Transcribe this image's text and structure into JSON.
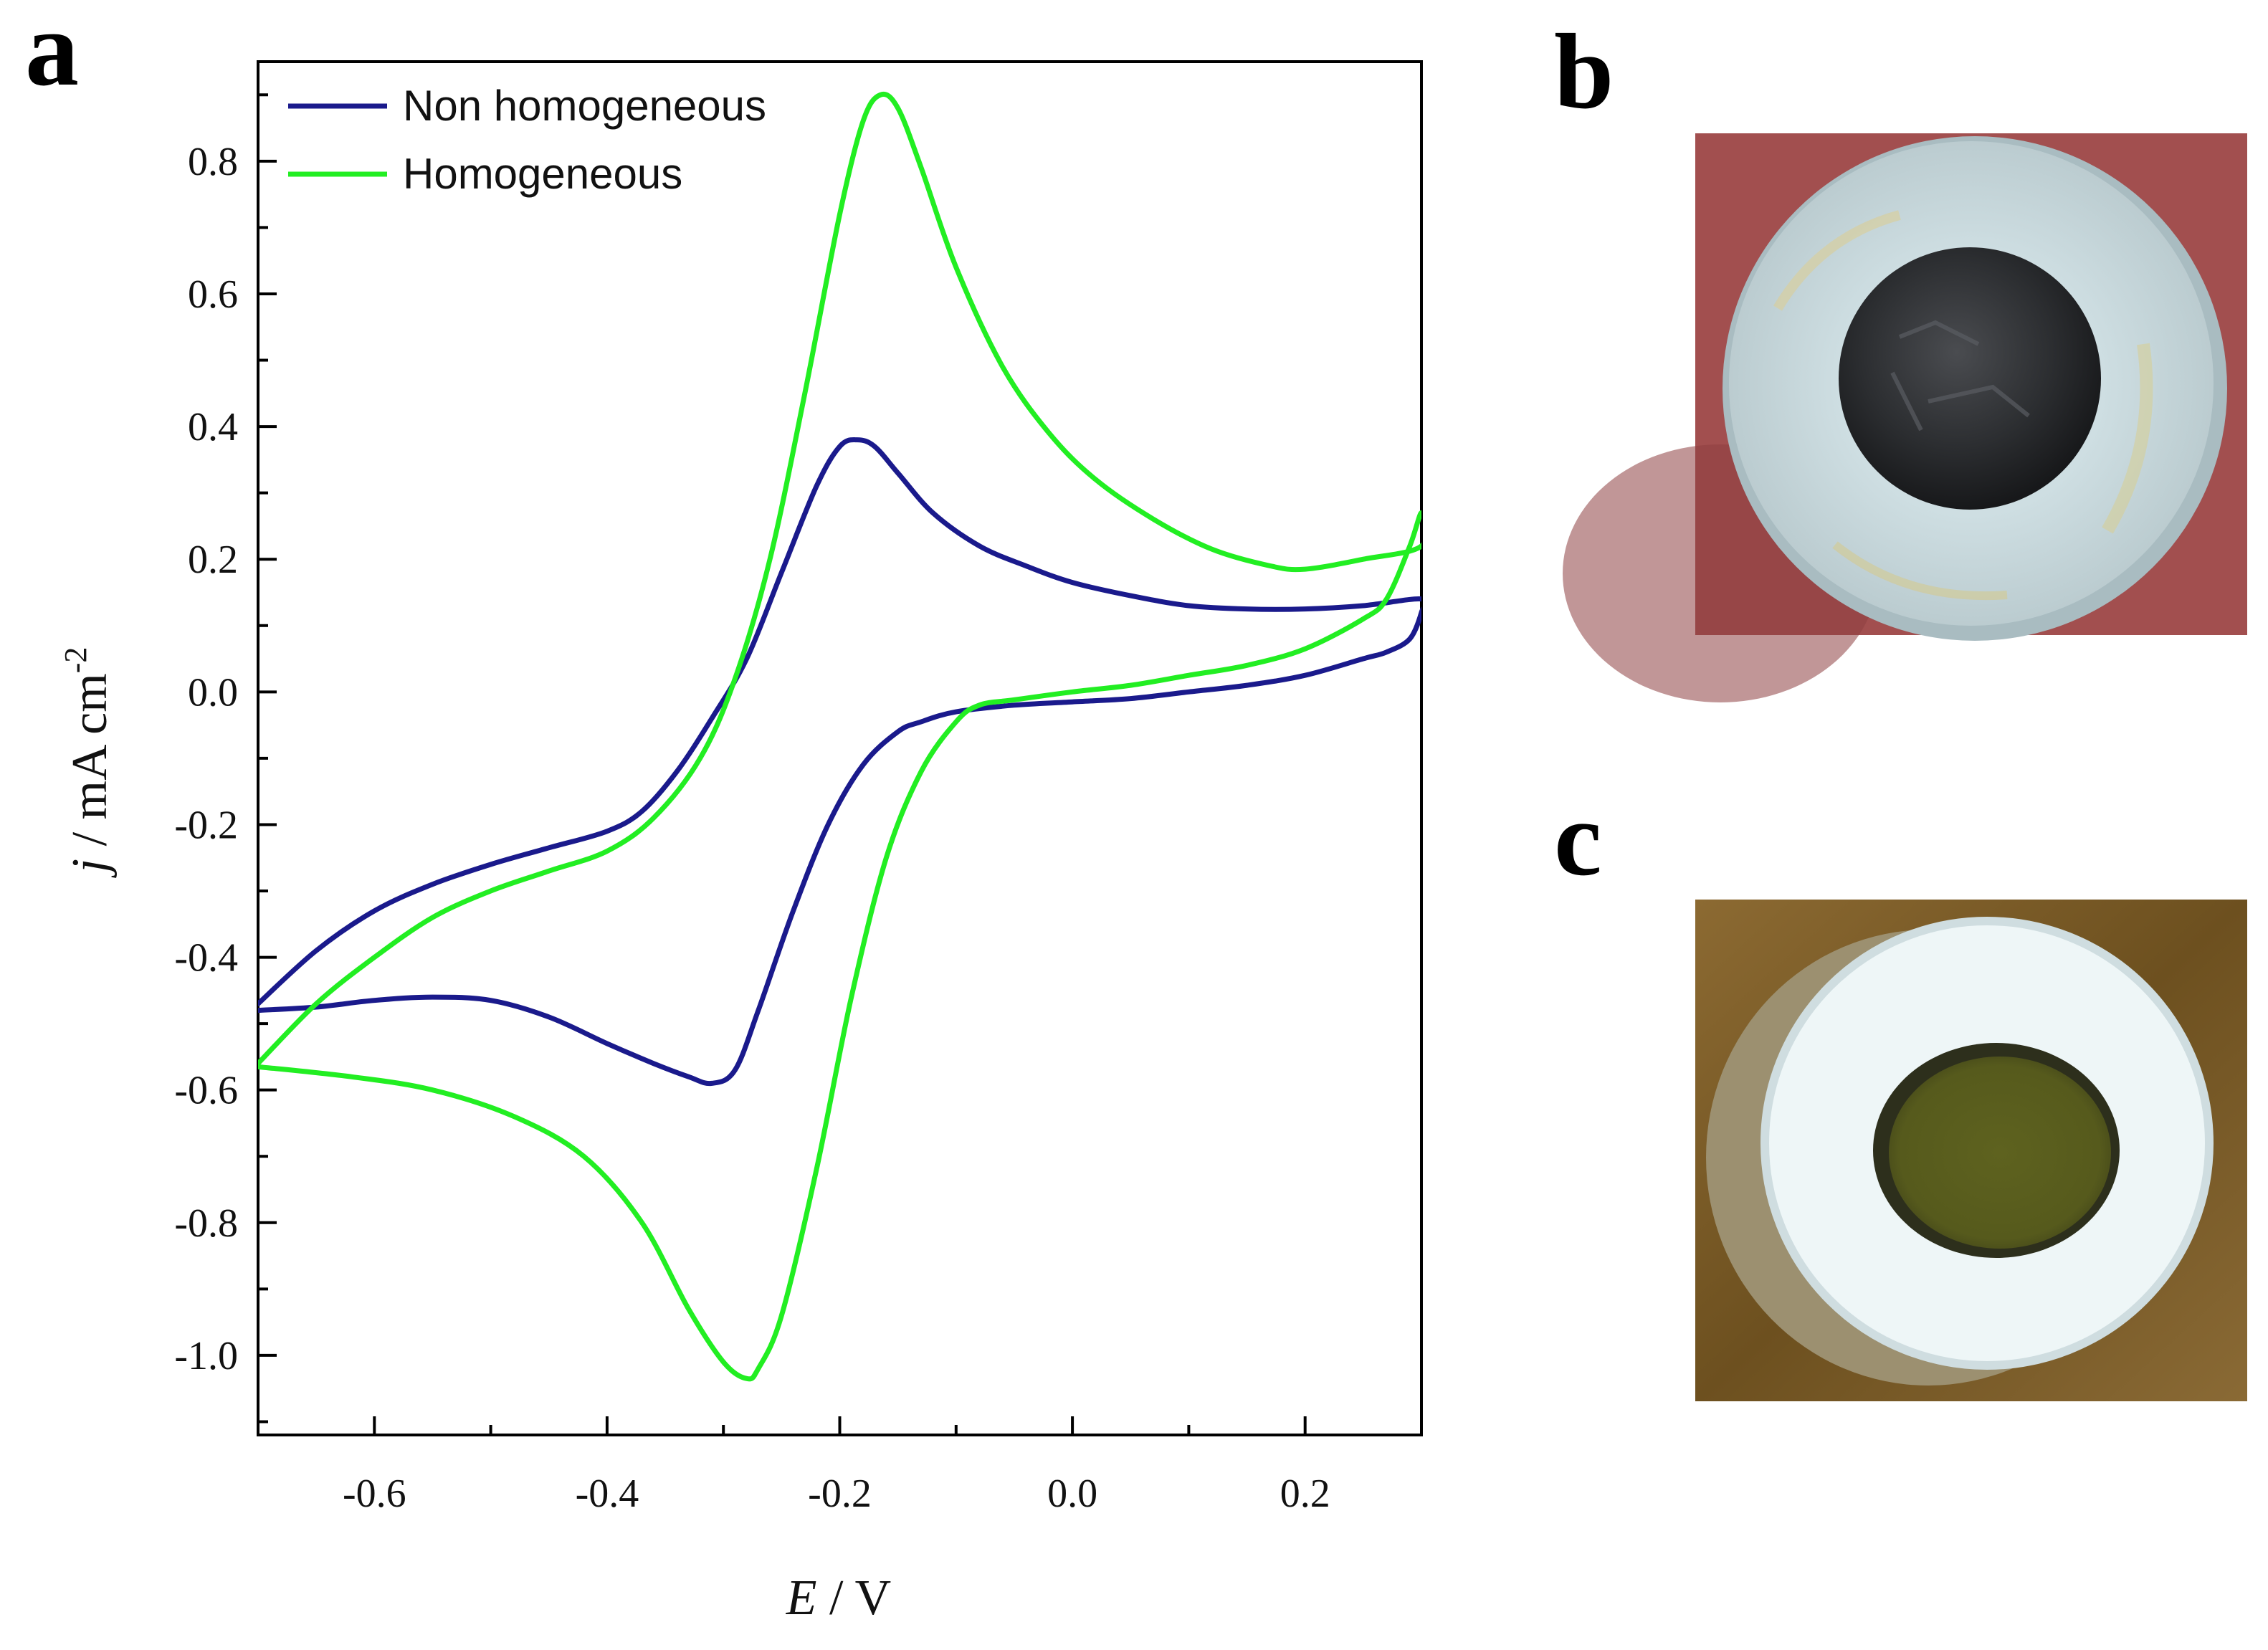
{
  "panels": {
    "a": "a",
    "b": "b",
    "c": "c"
  },
  "chart_data": {
    "type": "line",
    "title": "",
    "xlabel_var": "E",
    "xlabel_unit": " / V",
    "ylabel_var": "j",
    "ylabel_unit": " / mA cm",
    "ylabel_sup": "-2",
    "xlim": [
      -0.7,
      0.3
    ],
    "ylim": [
      -1.12,
      0.95
    ],
    "xticks": [
      -0.6,
      -0.4,
      -0.2,
      0.0,
      0.2
    ],
    "xtick_labels": [
      "-0.6",
      "-0.4",
      "-0.2",
      "0.0",
      "0.2"
    ],
    "yticks": [
      0.8,
      0.6,
      0.4,
      0.2,
      0.0,
      -0.2,
      -0.4,
      -0.6,
      -0.8,
      -1.0
    ],
    "ytick_labels": [
      "0.8",
      "0.6",
      "0.4",
      "0.2",
      "0.0",
      "-0.2",
      "-0.4",
      "-0.6",
      "-0.8",
      "-1.0"
    ],
    "legend": [
      "Non homogeneous",
      "Homogeneous"
    ],
    "legend_position": "top-left",
    "series": [
      {
        "name": "Non homogeneous",
        "color": "#1a1a8c",
        "points": [
          [
            -0.7,
            -0.47
          ],
          [
            -0.65,
            -0.39
          ],
          [
            -0.6,
            -0.33
          ],
          [
            -0.55,
            -0.29
          ],
          [
            -0.5,
            -0.26
          ],
          [
            -0.45,
            -0.235
          ],
          [
            -0.4,
            -0.21
          ],
          [
            -0.37,
            -0.18
          ],
          [
            -0.34,
            -0.12
          ],
          [
            -0.31,
            -0.04
          ],
          [
            -0.28,
            0.05
          ],
          [
            -0.25,
            0.18
          ],
          [
            -0.22,
            0.31
          ],
          [
            -0.2,
            0.37
          ],
          [
            -0.185,
            0.38
          ],
          [
            -0.17,
            0.37
          ],
          [
            -0.15,
            0.33
          ],
          [
            -0.12,
            0.27
          ],
          [
            -0.08,
            0.22
          ],
          [
            -0.04,
            0.19
          ],
          [
            0.0,
            0.165
          ],
          [
            0.05,
            0.145
          ],
          [
            0.1,
            0.13
          ],
          [
            0.15,
            0.125
          ],
          [
            0.2,
            0.125
          ],
          [
            0.25,
            0.13
          ],
          [
            0.3,
            0.14
          ],
          [
            0.3,
            0.12
          ],
          [
            0.29,
            0.08
          ],
          [
            0.27,
            0.06
          ],
          [
            0.25,
            0.05
          ],
          [
            0.2,
            0.025
          ],
          [
            0.15,
            0.01
          ],
          [
            0.1,
            0.0
          ],
          [
            0.05,
            -0.01
          ],
          [
            0.0,
            -0.015
          ],
          [
            -0.05,
            -0.02
          ],
          [
            -0.1,
            -0.03
          ],
          [
            -0.13,
            -0.045
          ],
          [
            -0.15,
            -0.06
          ],
          [
            -0.18,
            -0.11
          ],
          [
            -0.21,
            -0.2
          ],
          [
            -0.24,
            -0.33
          ],
          [
            -0.27,
            -0.48
          ],
          [
            -0.29,
            -0.57
          ],
          [
            -0.31,
            -0.59
          ],
          [
            -0.33,
            -0.58
          ],
          [
            -0.36,
            -0.56
          ],
          [
            -0.4,
            -0.53
          ],
          [
            -0.45,
            -0.49
          ],
          [
            -0.5,
            -0.465
          ],
          [
            -0.55,
            -0.46
          ],
          [
            -0.6,
            -0.465
          ],
          [
            -0.65,
            -0.475
          ],
          [
            -0.7,
            -0.48
          ]
        ]
      },
      {
        "name": "Homogeneous",
        "color": "#22ee22",
        "points": [
          [
            -0.7,
            -0.56
          ],
          [
            -0.65,
            -0.47
          ],
          [
            -0.6,
            -0.4
          ],
          [
            -0.55,
            -0.34
          ],
          [
            -0.5,
            -0.3
          ],
          [
            -0.45,
            -0.27
          ],
          [
            -0.4,
            -0.24
          ],
          [
            -0.36,
            -0.19
          ],
          [
            -0.32,
            -0.1
          ],
          [
            -0.29,
            0.02
          ],
          [
            -0.26,
            0.2
          ],
          [
            -0.23,
            0.45
          ],
          [
            -0.2,
            0.72
          ],
          [
            -0.18,
            0.86
          ],
          [
            -0.165,
            0.9
          ],
          [
            -0.15,
            0.88
          ],
          [
            -0.13,
            0.79
          ],
          [
            -0.1,
            0.64
          ],
          [
            -0.06,
            0.49
          ],
          [
            -0.02,
            0.39
          ],
          [
            0.02,
            0.32
          ],
          [
            0.07,
            0.26
          ],
          [
            0.12,
            0.215
          ],
          [
            0.17,
            0.19
          ],
          [
            0.2,
            0.185
          ],
          [
            0.25,
            0.2
          ],
          [
            0.3,
            0.22
          ],
          [
            0.3,
            0.27
          ],
          [
            0.29,
            0.22
          ],
          [
            0.27,
            0.14
          ],
          [
            0.25,
            0.11
          ],
          [
            0.2,
            0.065
          ],
          [
            0.15,
            0.04
          ],
          [
            0.1,
            0.025
          ],
          [
            0.05,
            0.01
          ],
          [
            0.0,
            0.0
          ],
          [
            -0.05,
            -0.012
          ],
          [
            -0.08,
            -0.02
          ],
          [
            -0.1,
            -0.045
          ],
          [
            -0.13,
            -0.12
          ],
          [
            -0.16,
            -0.25
          ],
          [
            -0.19,
            -0.46
          ],
          [
            -0.22,
            -0.72
          ],
          [
            -0.25,
            -0.94
          ],
          [
            -0.27,
            -1.02
          ],
          [
            -0.28,
            -1.035
          ],
          [
            -0.3,
            -1.01
          ],
          [
            -0.33,
            -0.93
          ],
          [
            -0.37,
            -0.8
          ],
          [
            -0.42,
            -0.7
          ],
          [
            -0.48,
            -0.64
          ],
          [
            -0.55,
            -0.6
          ],
          [
            -0.62,
            -0.58
          ],
          [
            -0.7,
            -0.565
          ]
        ]
      }
    ]
  },
  "photos": [
    {
      "name": "photo-b",
      "background": "#a24f4f",
      "ring": "#ccdde0",
      "core": "#2c2e31",
      "style": "electrode-front"
    },
    {
      "name": "photo-c",
      "background": "#7a5a24",
      "ring": "#eef6f7",
      "core": "#565a1c",
      "style": "electrode-side"
    }
  ]
}
